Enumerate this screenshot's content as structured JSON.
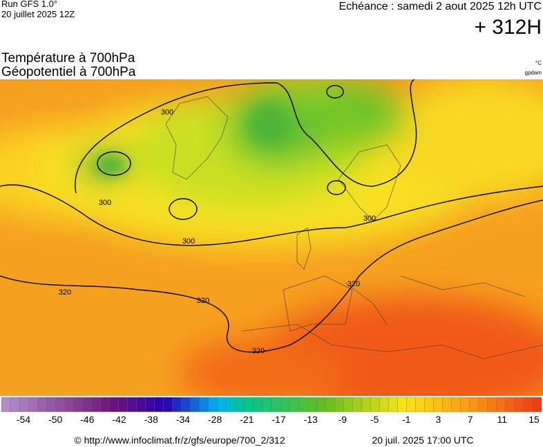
{
  "header": {
    "run": "Run GFS 1.0°",
    "run_date": "20 juillet 2025 12Z",
    "valid": "Echéance : samedi 2 aout 2025 12h UTC",
    "lead": "+ 312H"
  },
  "titles": {
    "temperature": "Température à 700hPa",
    "geopotential": "Géopotentiel à 700hPa"
  },
  "units": {
    "temperature": "°C",
    "geopotential": "gpdam"
  },
  "contour_labels": [
    "300",
    "300",
    "300",
    "300",
    "320",
    "320",
    "320",
    "320"
  ],
  "colorbar": {
    "labels": [
      "-54",
      "-50",
      "-46",
      "-42",
      "-38",
      "-34",
      "-28",
      "-21",
      "-17",
      "-13",
      "-9",
      "-5",
      "-1",
      "3",
      "7",
      "11",
      "15"
    ]
  },
  "footer": {
    "source": "© http://www.infoclimat.fr/z/gfs/europe/700_2/312",
    "generated": "20 juil. 2025 17:00 UTC"
  }
}
